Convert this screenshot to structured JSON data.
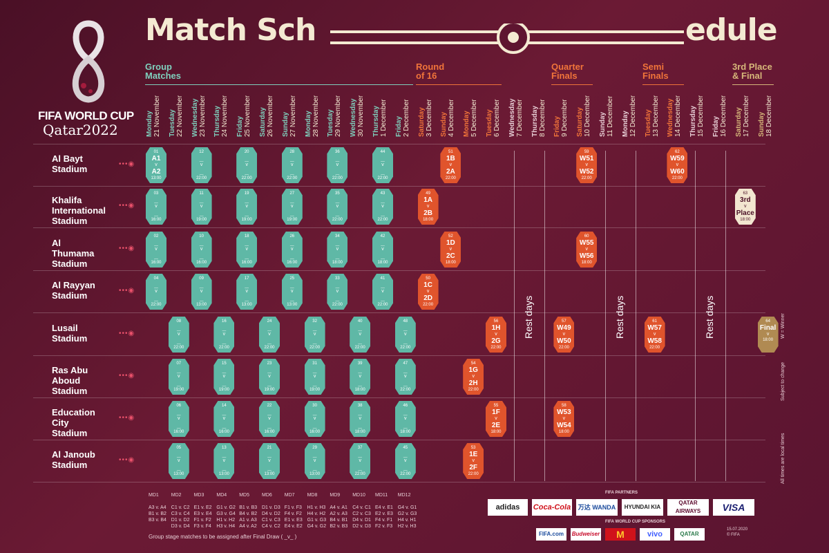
{
  "header": {
    "title_left": "Match Sch",
    "title_right": "edule"
  },
  "brand": {
    "name": "FIFA WORLD CUP",
    "sub": "Qatar2022"
  },
  "phases": [
    {
      "label": "Group\nMatches",
      "color": "#7fd0bd"
    },
    {
      "label": "Round\nof 16",
      "color": "#f0743a"
    },
    {
      "label": "Quarter\nFinals",
      "color": "#f0743a"
    },
    {
      "label": "Semi\nFinals",
      "color": "#f0743a"
    },
    {
      "label": "3rd Place\n& Final",
      "color": "#d6b77a"
    }
  ],
  "days": [
    {
      "w": "Monday",
      "d": "21 November"
    },
    {
      "w": "Tuesday",
      "d": "22 November"
    },
    {
      "w": "Wednesday",
      "d": "23 November"
    },
    {
      "w": "Thursday",
      "d": "24 November"
    },
    {
      "w": "Friday",
      "d": "25 November"
    },
    {
      "w": "Saturday",
      "d": "26 November"
    },
    {
      "w": "Sunday",
      "d": "27 November"
    },
    {
      "w": "Monday",
      "d": "28 November"
    },
    {
      "w": "Tuesday",
      "d": "29 November"
    },
    {
      "w": "Wednesday",
      "d": "30 November"
    },
    {
      "w": "Thursday",
      "d": "1 December"
    },
    {
      "w": "Friday",
      "d": "2 December"
    },
    {
      "w": "Saturday",
      "d": "3 December"
    },
    {
      "w": "Sunday",
      "d": "4 December"
    },
    {
      "w": "Monday",
      "d": "5 December"
    },
    {
      "w": "Tuesday",
      "d": "6 December"
    },
    {
      "w": "Wednesday",
      "d": "7 December"
    },
    {
      "w": "Thursday",
      "d": "8 December"
    },
    {
      "w": "Friday",
      "d": "9 December"
    },
    {
      "w": "Saturday",
      "d": "10 December"
    },
    {
      "w": "Sunday",
      "d": "11 December"
    },
    {
      "w": "Monday",
      "d": "12 December"
    },
    {
      "w": "Tuesday",
      "d": "13 December"
    },
    {
      "w": "Wednesday",
      "d": "14 December"
    },
    {
      "w": "Thursday",
      "d": "15 December"
    },
    {
      "w": "Friday",
      "d": "16 December"
    },
    {
      "w": "Saturday",
      "d": "17 December"
    },
    {
      "w": "Sunday",
      "d": "18 December"
    }
  ],
  "stadiums": [
    "Al Bayt\nStadium",
    "Khalifa\nInternational\nStadium",
    "Al\nThumama\nStadium",
    "Al Rayyan\nStadium",
    "Lusail\nStadium",
    "Ras Abu\nAboud\nStadium",
    "Education\nCity\nStadium",
    "Al Janoub\nStadium"
  ],
  "matches": [
    {
      "n": "01",
      "top": "A1",
      "bot": "A2",
      "time": "13:00",
      "day": 0,
      "row": 0,
      "c": "teal"
    },
    {
      "n": "12",
      "top": "_",
      "bot": "_",
      "time": "22:00",
      "day": 2,
      "row": 0,
      "c": "teal"
    },
    {
      "n": "20",
      "top": "_",
      "bot": "_",
      "time": "22:00",
      "day": 4,
      "row": 0,
      "c": "teal"
    },
    {
      "n": "28",
      "top": "_",
      "bot": "_",
      "time": "22:00",
      "day": 6,
      "row": 0,
      "c": "teal"
    },
    {
      "n": "36",
      "top": "_",
      "bot": "_",
      "time": "22:00",
      "day": 8,
      "row": 0,
      "c": "teal"
    },
    {
      "n": "44",
      "top": "_",
      "bot": "_",
      "time": "22:00",
      "day": 10,
      "row": 0,
      "c": "teal"
    },
    {
      "n": "51",
      "top": "1B",
      "bot": "2A",
      "time": "22:00",
      "day": 13,
      "row": 0,
      "c": "orange"
    },
    {
      "n": "59",
      "top": "W51",
      "bot": "W52",
      "time": "22:00",
      "day": 19,
      "row": 0,
      "c": "orange"
    },
    {
      "n": "62",
      "top": "W59",
      "bot": "W60",
      "time": "22:00",
      "day": 23,
      "row": 0,
      "c": "orange"
    },
    {
      "n": "03",
      "top": "_",
      "bot": "_",
      "time": "16:00",
      "day": 0,
      "row": 1,
      "c": "teal"
    },
    {
      "n": "11",
      "top": "_",
      "bot": "_",
      "time": "19:00",
      "day": 2,
      "row": 1,
      "c": "teal"
    },
    {
      "n": "19",
      "top": "_",
      "bot": "_",
      "time": "19:00",
      "day": 4,
      "row": 1,
      "c": "teal"
    },
    {
      "n": "27",
      "top": "_",
      "bot": "_",
      "time": "19:00",
      "day": 6,
      "row": 1,
      "c": "teal"
    },
    {
      "n": "35",
      "top": "_",
      "bot": "_",
      "time": "22:00",
      "day": 8,
      "row": 1,
      "c": "teal"
    },
    {
      "n": "43",
      "top": "_",
      "bot": "_",
      "time": "22:00",
      "day": 10,
      "row": 1,
      "c": "teal"
    },
    {
      "n": "49",
      "top": "1A",
      "bot": "2B",
      "time": "18:00",
      "day": 12,
      "row": 1,
      "c": "orange"
    },
    {
      "n": "63",
      "top": "3rd",
      "bot": "Place",
      "time": "18:00",
      "day": 26,
      "row": 1,
      "c": "outline"
    },
    {
      "n": "02",
      "top": "_",
      "bot": "_",
      "time": "16:00",
      "day": 0,
      "row": 2,
      "c": "teal"
    },
    {
      "n": "10",
      "top": "_",
      "bot": "_",
      "time": "16:00",
      "day": 2,
      "row": 2,
      "c": "teal"
    },
    {
      "n": "18",
      "top": "_",
      "bot": "_",
      "time": "16:00",
      "day": 4,
      "row": 2,
      "c": "teal"
    },
    {
      "n": "26",
      "top": "_",
      "bot": "_",
      "time": "16:00",
      "day": 6,
      "row": 2,
      "c": "teal"
    },
    {
      "n": "34",
      "top": "_",
      "bot": "_",
      "time": "18:00",
      "day": 8,
      "row": 2,
      "c": "teal"
    },
    {
      "n": "42",
      "top": "_",
      "bot": "_",
      "time": "18:00",
      "day": 10,
      "row": 2,
      "c": "teal"
    },
    {
      "n": "52",
      "top": "1D",
      "bot": "2C",
      "time": "18:00",
      "day": 13,
      "row": 2,
      "c": "orange"
    },
    {
      "n": "60",
      "top": "W55",
      "bot": "W56",
      "time": "18:00",
      "day": 19,
      "row": 2,
      "c": "orange"
    },
    {
      "n": "04",
      "top": "_",
      "bot": "_",
      "time": "22:00",
      "day": 0,
      "row": 3,
      "c": "teal"
    },
    {
      "n": "09",
      "top": "_",
      "bot": "_",
      "time": "13:00",
      "day": 2,
      "row": 3,
      "c": "teal"
    },
    {
      "n": "17",
      "top": "_",
      "bot": "_",
      "time": "13:00",
      "day": 4,
      "row": 3,
      "c": "teal"
    },
    {
      "n": "25",
      "top": "_",
      "bot": "_",
      "time": "13:00",
      "day": 6,
      "row": 3,
      "c": "teal"
    },
    {
      "n": "33",
      "top": "_",
      "bot": "_",
      "time": "22:00",
      "day": 8,
      "row": 3,
      "c": "teal"
    },
    {
      "n": "41",
      "top": "_",
      "bot": "_",
      "time": "22:00",
      "day": 10,
      "row": 3,
      "c": "teal"
    },
    {
      "n": "50",
      "top": "1C",
      "bot": "2D",
      "time": "22:00",
      "day": 12,
      "row": 3,
      "c": "orange"
    },
    {
      "n": "08",
      "top": "_",
      "bot": "_",
      "time": "22:00",
      "day": 1,
      "row": 4,
      "c": "teal"
    },
    {
      "n": "16",
      "top": "_",
      "bot": "_",
      "time": "22:00",
      "day": 3,
      "row": 4,
      "c": "teal"
    },
    {
      "n": "24",
      "top": "_",
      "bot": "_",
      "time": "22:00",
      "day": 5,
      "row": 4,
      "c": "teal"
    },
    {
      "n": "32",
      "top": "_",
      "bot": "_",
      "time": "22:00",
      "day": 7,
      "row": 4,
      "c": "teal"
    },
    {
      "n": "40",
      "top": "_",
      "bot": "_",
      "time": "22:00",
      "day": 9,
      "row": 4,
      "c": "teal"
    },
    {
      "n": "48",
      "top": "_",
      "bot": "_",
      "time": "22:00",
      "day": 11,
      "row": 4,
      "c": "teal"
    },
    {
      "n": "56",
      "top": "1H",
      "bot": "2G",
      "time": "22:00",
      "day": 15,
      "row": 4,
      "c": "orange"
    },
    {
      "n": "57",
      "top": "W49",
      "bot": "W50",
      "time": "22:00",
      "day": 18,
      "row": 4,
      "c": "orange"
    },
    {
      "n": "61",
      "top": "W57",
      "bot": "W58",
      "time": "22:00",
      "day": 22,
      "row": 4,
      "c": "orange"
    },
    {
      "n": "64",
      "top": "Final",
      "bot": "",
      "time": "18:00",
      "day": 27,
      "row": 4,
      "c": "gold"
    },
    {
      "n": "07",
      "top": "_",
      "bot": "_",
      "time": "19:00",
      "day": 1,
      "row": 5,
      "c": "teal"
    },
    {
      "n": "15",
      "top": "_",
      "bot": "_",
      "time": "19:00",
      "day": 3,
      "row": 5,
      "c": "teal"
    },
    {
      "n": "23",
      "top": "_",
      "bot": "_",
      "time": "19:00",
      "day": 5,
      "row": 5,
      "c": "teal"
    },
    {
      "n": "31",
      "top": "_",
      "bot": "_",
      "time": "19:00",
      "day": 7,
      "row": 5,
      "c": "teal"
    },
    {
      "n": "39",
      "top": "_",
      "bot": "_",
      "time": "18:00",
      "day": 9,
      "row": 5,
      "c": "teal"
    },
    {
      "n": "47",
      "top": "_",
      "bot": "_",
      "time": "22:00",
      "day": 11,
      "row": 5,
      "c": "teal"
    },
    {
      "n": "54",
      "top": "1G",
      "bot": "2H",
      "time": "22:00",
      "day": 14,
      "row": 5,
      "c": "orange"
    },
    {
      "n": "06",
      "top": "_",
      "bot": "_",
      "time": "16:00",
      "day": 1,
      "row": 6,
      "c": "teal"
    },
    {
      "n": "14",
      "top": "_",
      "bot": "_",
      "time": "16:00",
      "day": 3,
      "row": 6,
      "c": "teal"
    },
    {
      "n": "22",
      "top": "_",
      "bot": "_",
      "time": "16:00",
      "day": 5,
      "row": 6,
      "c": "teal"
    },
    {
      "n": "30",
      "top": "_",
      "bot": "_",
      "time": "16:00",
      "day": 7,
      "row": 6,
      "c": "teal"
    },
    {
      "n": "38",
      "top": "_",
      "bot": "_",
      "time": "18:00",
      "day": 9,
      "row": 6,
      "c": "teal"
    },
    {
      "n": "46",
      "top": "_",
      "bot": "_",
      "time": "18:00",
      "day": 11,
      "row": 6,
      "c": "teal"
    },
    {
      "n": "55",
      "top": "1F",
      "bot": "2E",
      "time": "18:00",
      "day": 15,
      "row": 6,
      "c": "orange"
    },
    {
      "n": "58",
      "top": "W53",
      "bot": "W54",
      "time": "18:00",
      "day": 18,
      "row": 6,
      "c": "orange"
    },
    {
      "n": "05",
      "top": "_",
      "bot": "_",
      "time": "13:00",
      "day": 1,
      "row": 7,
      "c": "teal"
    },
    {
      "n": "13",
      "top": "_",
      "bot": "_",
      "time": "13:00",
      "day": 3,
      "row": 7,
      "c": "teal"
    },
    {
      "n": "21",
      "top": "_",
      "bot": "_",
      "time": "13:00",
      "day": 5,
      "row": 7,
      "c": "teal"
    },
    {
      "n": "29",
      "top": "_",
      "bot": "_",
      "time": "13:00",
      "day": 7,
      "row": 7,
      "c": "teal"
    },
    {
      "n": "37",
      "top": "_",
      "bot": "_",
      "time": "22:00",
      "day": 9,
      "row": 7,
      "c": "teal"
    },
    {
      "n": "45",
      "top": "_",
      "bot": "_",
      "time": "22:00",
      "day": 11,
      "row": 7,
      "c": "teal"
    },
    {
      "n": "53",
      "top": "1E",
      "bot": "2F",
      "time": "22:00",
      "day": 14,
      "row": 7,
      "c": "orange"
    }
  ],
  "rest_days": [
    "Rest days",
    "Rest days",
    "Rest days"
  ],
  "matchdays": [
    "MD1\n\nA3 v. A4\nB1 v. B2\nB3 v. B4",
    "MD2\n\nC1 v. C2\nC3 v. C4\nD1 v. D2\nD3 v. D4",
    "MD3\n\nE1 v. E2\nE3 v. E4\nF1 v. F2\nF3 v. F4",
    "MD4\n\nG1 v. G2\nG3 v. G4\nH1 v. H2\nH3 v. H4",
    "MD5\n\nB1 v. B3\nB4 v. B2\nA1 v. A3\nA4 v. A2",
    "MD6\n\nD1 v. D3\nD4 v. D2\nC1 v. C3\nC4 v. C2",
    "MD7\n\nF1 v. F3\nF4 v. F2\nE1 v. E3\nE4 v. E2",
    "MD8\n\nH1 v. H3\nH4 v. H2\nG1 v. G3\nG4 v. G2",
    "MD9\n\nA4 v. A1\nA2 v. A3\nB4 v. B1\nB2 v. B3",
    "MD10\n\nC4 v. C1\nC2 v. C3\nD4 v. D1\nD2 v. D3",
    "MD11\n\nE4 v. E1\nE2 v. E3\nF4 v. F1\nF2 v. F3",
    "MD12\n\nG4 v. G1\nG2 v. G3\nH4 v. H1\nH2 v. H3"
  ],
  "footnote": "Group stage matches to be assigned after Final Draw ( _v_ )",
  "partners_label": "FIFA PARTNERS",
  "partners": [
    "adidas",
    "Coca-Cola",
    "万达 WANDA",
    "HYUNDAI KIA",
    "QATAR AIRWAYS",
    "VISA"
  ],
  "sponsors_label": "FIFA WORLD CUP SPONSORS",
  "sponsors": [
    "FIFA.com",
    "Budweiser",
    "M",
    "vivo",
    "QATAR"
  ],
  "side_notes": [
    "W = Winner",
    "Subject to change",
    "All times are local times"
  ],
  "date_note": "15.07.2020\n© FIFA",
  "colors": {
    "teal": "#5fb8a6",
    "orange": "#e0542c",
    "gold": "#b08a52",
    "bg": "#5e1530",
    "cream": "#f4ead2"
  }
}
